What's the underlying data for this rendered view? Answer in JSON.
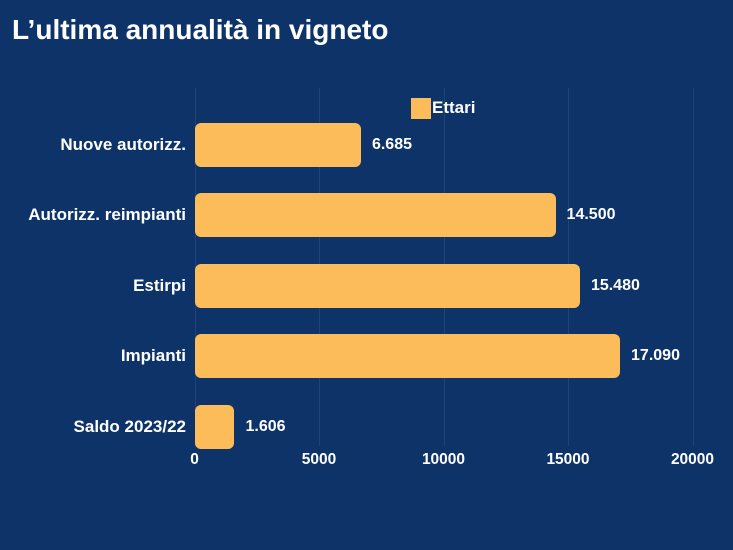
{
  "page": {
    "background_color": "#0d3369"
  },
  "header": {
    "title": "L’ultima annualità in vigneto"
  },
  "legend": {
    "label": "Ettari",
    "swatch_color": "#fbbc59"
  },
  "chart_data": {
    "type": "bar",
    "orientation": "horizontal",
    "title": "L’ultima annualità in vigneto",
    "legend_entries": [
      "Ettari"
    ],
    "legend_position": "top-center",
    "categories": [
      "Nuove autorizz.",
      "Autorizz. reimpianti",
      "Estirpi",
      "Impianti",
      "Saldo 2023/22"
    ],
    "series": [
      {
        "name": "Ettari",
        "values": [
          6685,
          14500,
          15480,
          17090,
          1606
        ],
        "value_labels": [
          "6.685",
          "14.500",
          "15.480",
          "17.090",
          "1.606"
        ]
      }
    ],
    "xlabel": "",
    "ylabel": "",
    "xlim": [
      0,
      20000
    ],
    "xticks": [
      0,
      5000,
      10000,
      15000,
      20000
    ],
    "xtick_labels": [
      "0",
      "5000",
      "10000",
      "15000",
      "20000"
    ],
    "grid": "vertical-faint",
    "bar_color": "#fbbc59",
    "background_color": "#0d3369",
    "text_color": "#ffffff"
  }
}
